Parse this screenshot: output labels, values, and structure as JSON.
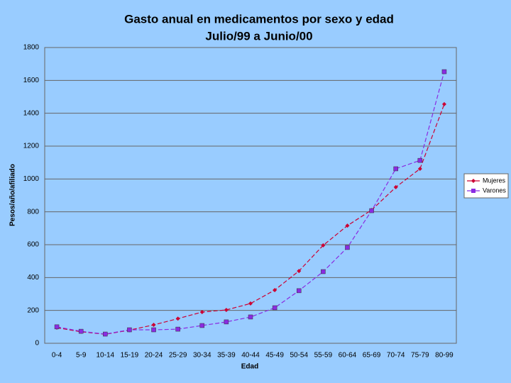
{
  "chart_data": {
    "type": "line",
    "title": "Gasto anual en medicamentos por sexo y edad",
    "subtitle": "Julio/99 a Junio/00",
    "x_label": "Edad",
    "y_label": "Pesos/año/afiliado",
    "categories": [
      "0-4",
      "5-9",
      "10-14",
      "15-19",
      "20-24",
      "25-29",
      "30-34",
      "35-39",
      "40-44",
      "45-49",
      "50-54",
      "55-59",
      "60-64",
      "65-69",
      "70-74",
      "75-79",
      "80-99"
    ],
    "series": [
      {
        "name": "Mujeres",
        "color": "#cc0033",
        "marker": "diamond",
        "values": [
          95,
          70,
          55,
          80,
          112,
          150,
          190,
          203,
          242,
          324,
          440,
          596,
          716,
          811,
          950,
          1062,
          1455
        ]
      },
      {
        "name": "Varones",
        "color": "#8a2be2",
        "marker": "square",
        "values": [
          100,
          73,
          56,
          82,
          82,
          86,
          108,
          130,
          160,
          216,
          320,
          436,
          583,
          807,
          1062,
          1113,
          1653
        ]
      }
    ],
    "ylim": [
      0,
      1800
    ],
    "yticks": [
      0,
      200,
      400,
      600,
      800,
      1000,
      1200,
      1400,
      1600,
      1800
    ],
    "grid": true,
    "legend": "right"
  }
}
